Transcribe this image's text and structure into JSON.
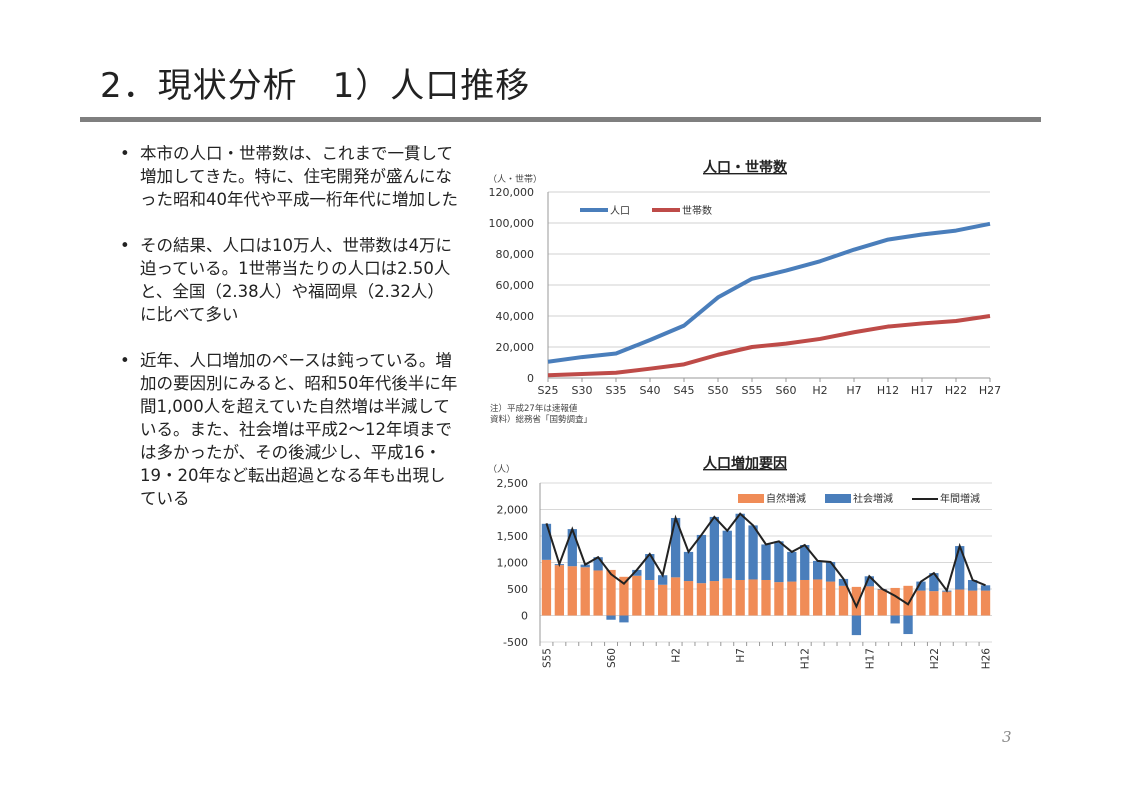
{
  "title": "2．現状分析　1）人口推移",
  "bullets": [
    "本市の人口・世帯数は、これまで一貫して増加してきた。特に、住宅開発が盛んになった昭和40年代や平成一桁年代に増加した",
    "その結果、人口は10万人、世帯数は4万に迫っている。1世帯当たりの人口は2.50人と、全国（2.38人）や福岡県（2.32人）に比べて多い",
    "近年、人口増加のペースは鈍っている。増加の要因別にみると、昭和50年代後半に年間1,000人を超えていた自然増は半減している。また、社会増は平成2～12年頃までは多かったが、その後減少し、平成16・19・20年など転出超過となる年も出現している"
  ],
  "page_number": "3",
  "chart_data": [
    {
      "type": "line",
      "title": "人口・世帯数",
      "ylabel": "（人・世帯）",
      "ylim": [
        0,
        120000
      ],
      "yticks": [
        "0",
        "20,000",
        "40,000",
        "60,000",
        "80,000",
        "100,000",
        "120,000"
      ],
      "categories": [
        "S25",
        "S30",
        "S35",
        "S40",
        "S45",
        "S50",
        "S55",
        "S60",
        "H2",
        "H7",
        "H12",
        "H17",
        "H22",
        "H27"
      ],
      "series": [
        {
          "name": "人口",
          "color": "#4a7ebb",
          "values": [
            10500,
            13500,
            15800,
            24500,
            33800,
            52000,
            64000,
            69300,
            75300,
            82800,
            89300,
            92600,
            95100,
            99500
          ]
        },
        {
          "name": "世帯数",
          "color": "#be4b48",
          "values": [
            1800,
            2600,
            3400,
            6000,
            8800,
            15000,
            20000,
            22200,
            25200,
            29500,
            33200,
            35200,
            36800,
            40000
          ]
        }
      ],
      "legend": "top-left",
      "grid": true,
      "notes": [
        "注）平成27年は速報値",
        "資料）総務省「国勢調査」"
      ]
    },
    {
      "type": "bar",
      "title": "人口増加要因",
      "ylabel": "（人）",
      "ylim": [
        -500,
        2500
      ],
      "yticks": [
        "-500",
        "0",
        "500",
        "1,000",
        "1,500",
        "2,000",
        "2,500"
      ],
      "tick_labels": [
        {
          "i": 0,
          "label": "S55"
        },
        {
          "i": 5,
          "label": "S60"
        },
        {
          "i": 10,
          "label": "H2"
        },
        {
          "i": 15,
          "label": "H7"
        },
        {
          "i": 20,
          "label": "H12"
        },
        {
          "i": 25,
          "label": "H17"
        },
        {
          "i": 30,
          "label": "H22"
        },
        {
          "i": 34,
          "label": "H26"
        }
      ],
      "series": [
        {
          "name": "自然増減",
          "type": "bar",
          "color": "#f08c57",
          "values": [
            1050,
            950,
            930,
            910,
            850,
            860,
            730,
            750,
            670,
            580,
            720,
            650,
            610,
            650,
            700,
            670,
            680,
            670,
            630,
            640,
            670,
            680,
            640,
            560,
            540,
            550,
            490,
            520,
            560,
            470,
            460,
            450,
            490,
            470,
            470
          ]
        },
        {
          "name": "社会増減",
          "type": "bar",
          "color": "#4a7ebb",
          "values": [
            680,
            20,
            700,
            50,
            250,
            -80,
            -130,
            110,
            490,
            180,
            1120,
            550,
            910,
            1210,
            900,
            1250,
            1020,
            670,
            770,
            560,
            660,
            350,
            370,
            130,
            -370,
            190,
            10,
            -150,
            -350,
            170,
            340,
            20,
            820,
            200,
            100
          ]
        },
        {
          "name": "年間増減",
          "type": "line",
          "color": "#222222",
          "values": [
            1740,
            970,
            1630,
            960,
            1100,
            780,
            600,
            860,
            1160,
            760,
            1840,
            1200,
            1520,
            1860,
            1600,
            1920,
            1700,
            1340,
            1400,
            1200,
            1330,
            1030,
            1010,
            690,
            170,
            740,
            500,
            370,
            210,
            640,
            800,
            470,
            1310,
            670,
            570
          ]
        }
      ],
      "legend": "top-right",
      "grid": true
    }
  ]
}
